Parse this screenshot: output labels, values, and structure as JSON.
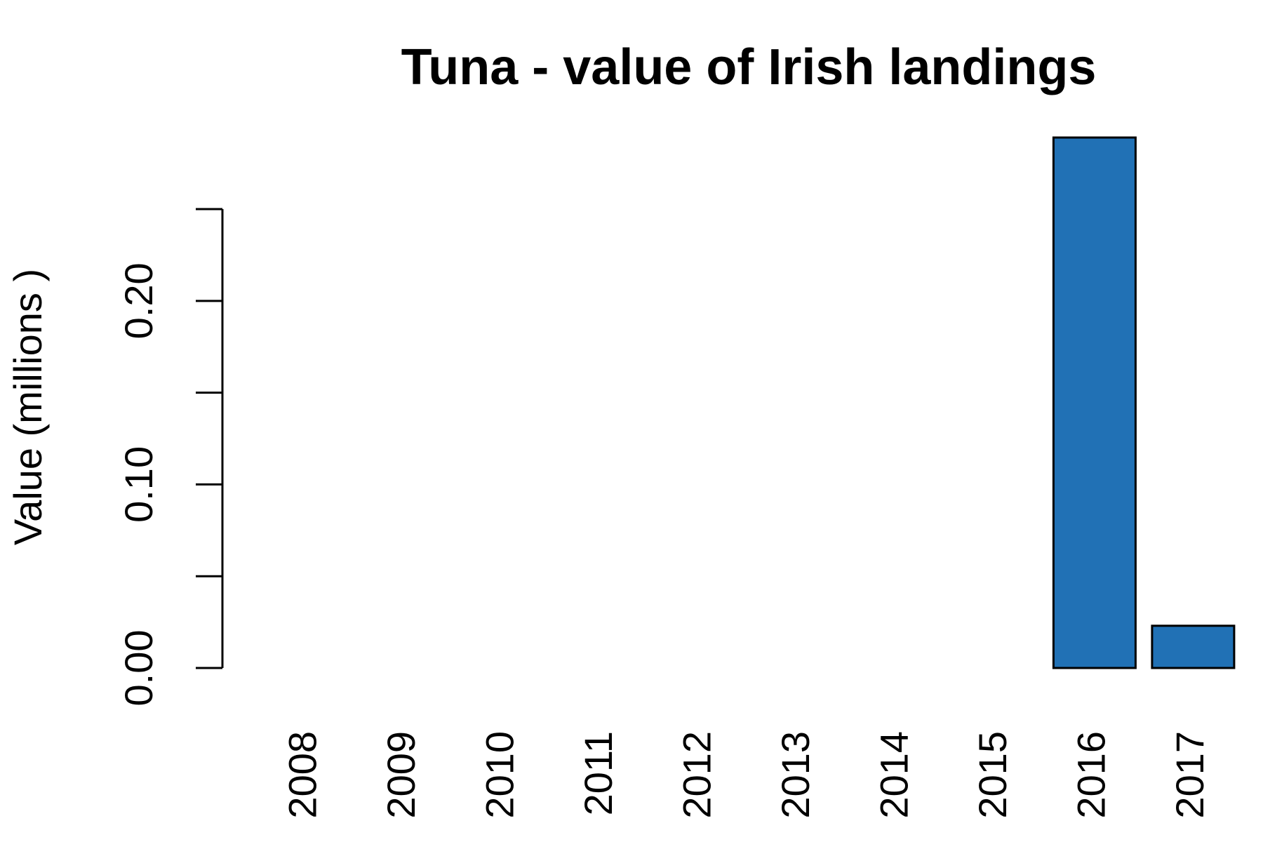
{
  "chart_data": {
    "type": "bar",
    "title": "Tuna - value of Irish landings",
    "ylabel": "Value (millions )",
    "categories": [
      "2008",
      "2009",
      "2010",
      "2011",
      "2012",
      "2013",
      "2014",
      "2015",
      "2016",
      "2017"
    ],
    "values": [
      0,
      0,
      0,
      0,
      0,
      0,
      0,
      0,
      0.289,
      0.023
    ],
    "color": "#2171b5",
    "ylim": [
      0,
      0.289
    ],
    "yticks": [
      {
        "value": 0,
        "label": "0.00"
      },
      {
        "value": 0.05,
        "label": null
      },
      {
        "value": 0.1,
        "label": "0.10"
      },
      {
        "value": 0.15,
        "label": null
      },
      {
        "value": 0.2,
        "label": "0.20"
      },
      {
        "value": 0.25,
        "label": null
      }
    ],
    "grid": false
  }
}
